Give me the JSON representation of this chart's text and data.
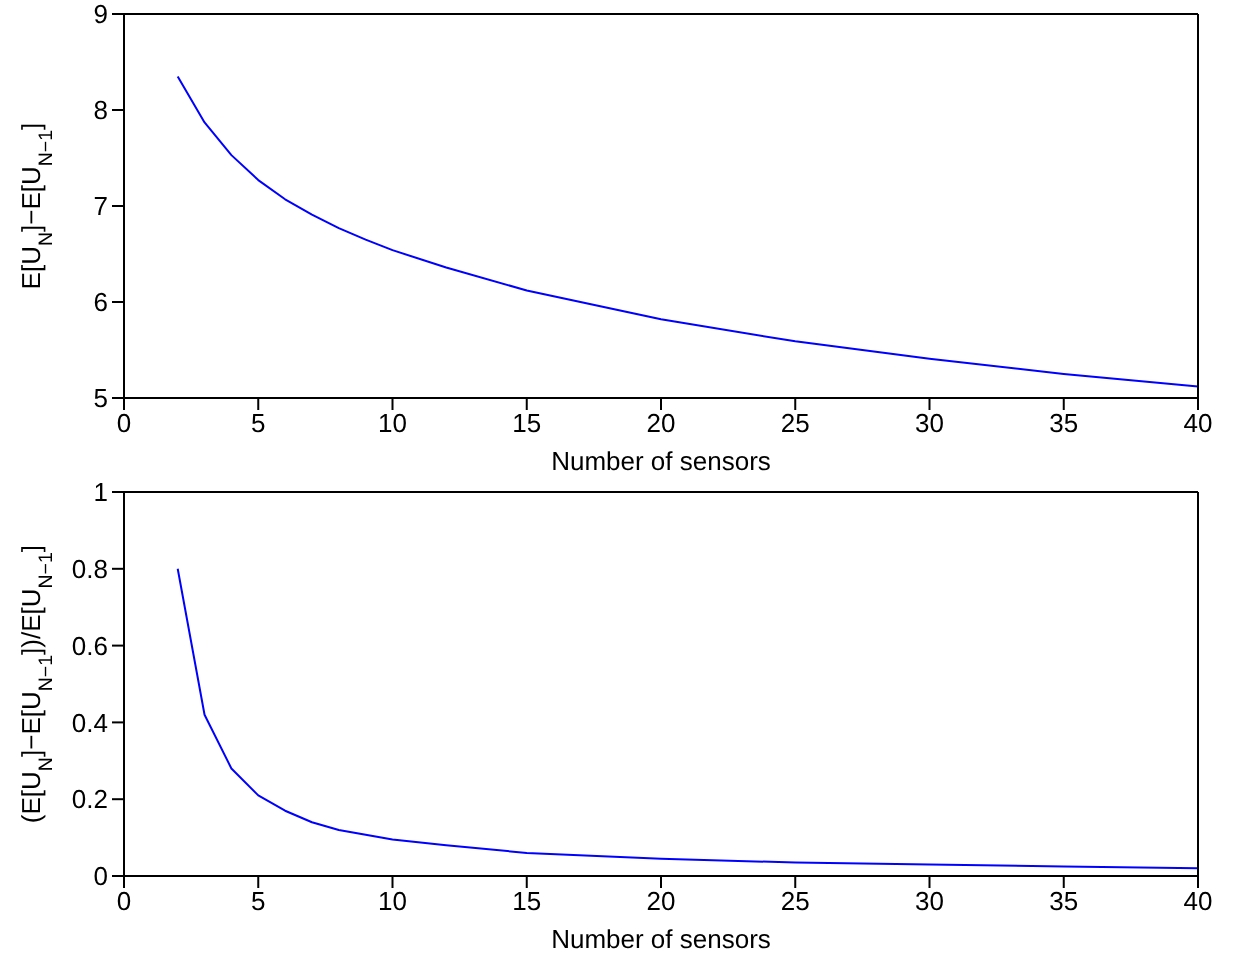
{
  "chart_data": [
    {
      "type": "line",
      "xlabel": "Number of sensors",
      "ylabel": "E[U$_{N}$]−E[U$_{N−1}$]",
      "xlim": [
        0,
        40
      ],
      "xticks": [
        0,
        5,
        10,
        15,
        20,
        25,
        30,
        35,
        40
      ],
      "ylim": [
        5,
        9
      ],
      "yticks": [
        5,
        6,
        7,
        8,
        9
      ],
      "marker": "none",
      "line_style": "solid",
      "series": [
        {
          "color": "#0000ff",
          "x": [
            2,
            3,
            4,
            5,
            6,
            7,
            8,
            9,
            10,
            12,
            15,
            20,
            25,
            30,
            35,
            40
          ],
          "values": [
            8.35,
            7.87,
            7.53,
            7.27,
            7.07,
            6.91,
            6.77,
            6.65,
            6.54,
            6.36,
            6.12,
            5.82,
            5.59,
            5.41,
            5.25,
            5.12
          ]
        }
      ]
    },
    {
      "type": "line",
      "xlabel": "Number of sensors",
      "ylabel": "(E[U$_{N}$]−E[U$_{N−1}$])/E[U$_{N−1}$]",
      "xlim": [
        0,
        40
      ],
      "xticks": [
        0,
        5,
        10,
        15,
        20,
        25,
        30,
        35,
        40
      ],
      "ylim": [
        0,
        1
      ],
      "yticks": [
        0,
        0.2,
        0.4,
        0.6,
        0.8,
        1
      ],
      "marker": "none",
      "line_style": "solid",
      "series": [
        {
          "color": "#0000ff",
          "x": [
            2,
            3,
            4,
            5,
            6,
            7,
            8,
            10,
            12,
            15,
            20,
            25,
            30,
            35,
            40
          ],
          "values": [
            0.8,
            0.42,
            0.28,
            0.21,
            0.17,
            0.14,
            0.12,
            0.095,
            0.08,
            0.06,
            0.045,
            0.035,
            0.03,
            0.025,
            0.02
          ]
        }
      ]
    }
  ]
}
